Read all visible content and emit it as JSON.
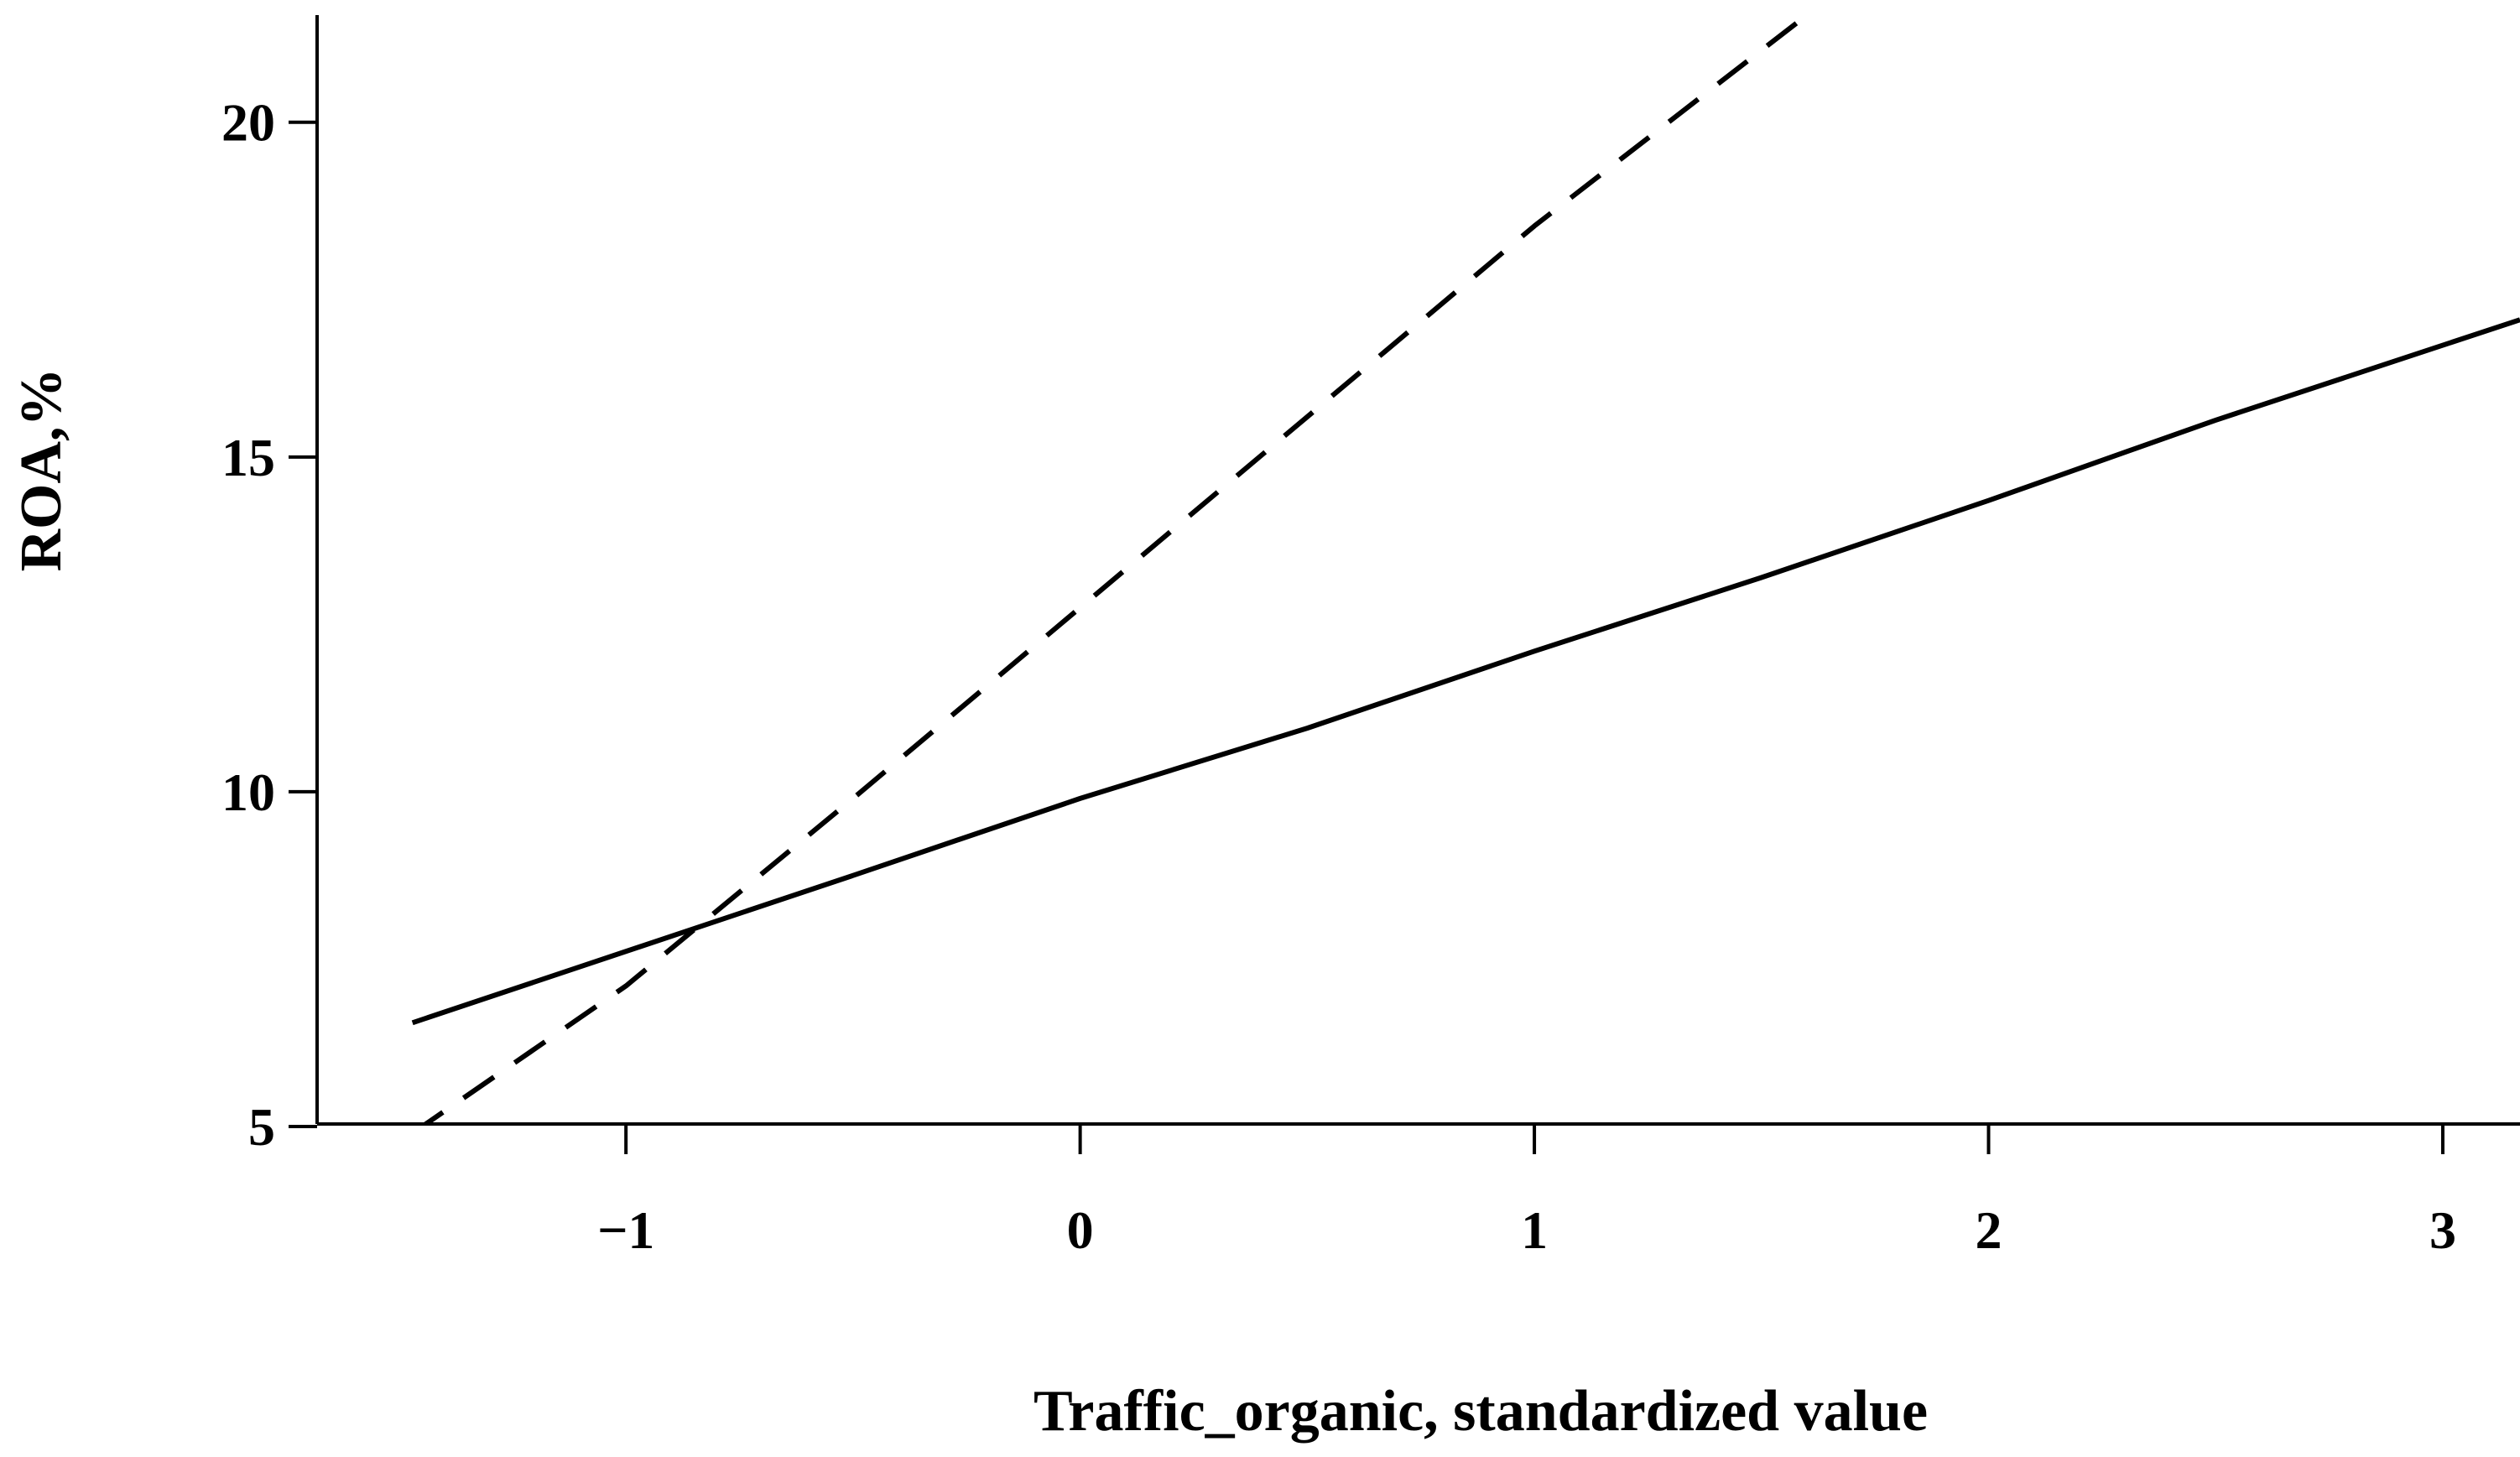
{
  "chart_data": {
    "type": "line",
    "title": "",
    "xlabel": "Traffic_organic, standardized value",
    "ylabel": "ROA,%",
    "xlim": [
      -1.68,
      3.17
    ],
    "ylim": [
      4.85,
      21.6
    ],
    "x_ticks": [
      -1,
      0,
      1,
      2,
      3
    ],
    "x_tick_labels": [
      "−1",
      "0",
      "1",
      "2",
      "3"
    ],
    "y_ticks": [
      5,
      10,
      15,
      20
    ],
    "y_tick_labels": [
      "5",
      "10",
      "15",
      "20"
    ],
    "grid": false,
    "legend": "none",
    "series": [
      {
        "style": "solid",
        "color": "#000000",
        "x": [
          -1.47,
          -0.5,
          0,
          0.5,
          1,
          1.5,
          2,
          2.5,
          3.17
        ],
        "y": [
          6.55,
          8.75,
          9.9,
          10.95,
          12.1,
          13.2,
          14.35,
          15.55,
          17.05
        ]
      },
      {
        "style": "dashed",
        "color": "#000000",
        "x": [
          -1.47,
          -1,
          -0.5,
          0,
          0.5,
          1,
          1.6
        ],
        "y": [
          4.9,
          7.1,
          9.9,
          12.75,
          15.6,
          18.45,
          21.6
        ]
      }
    ]
  }
}
